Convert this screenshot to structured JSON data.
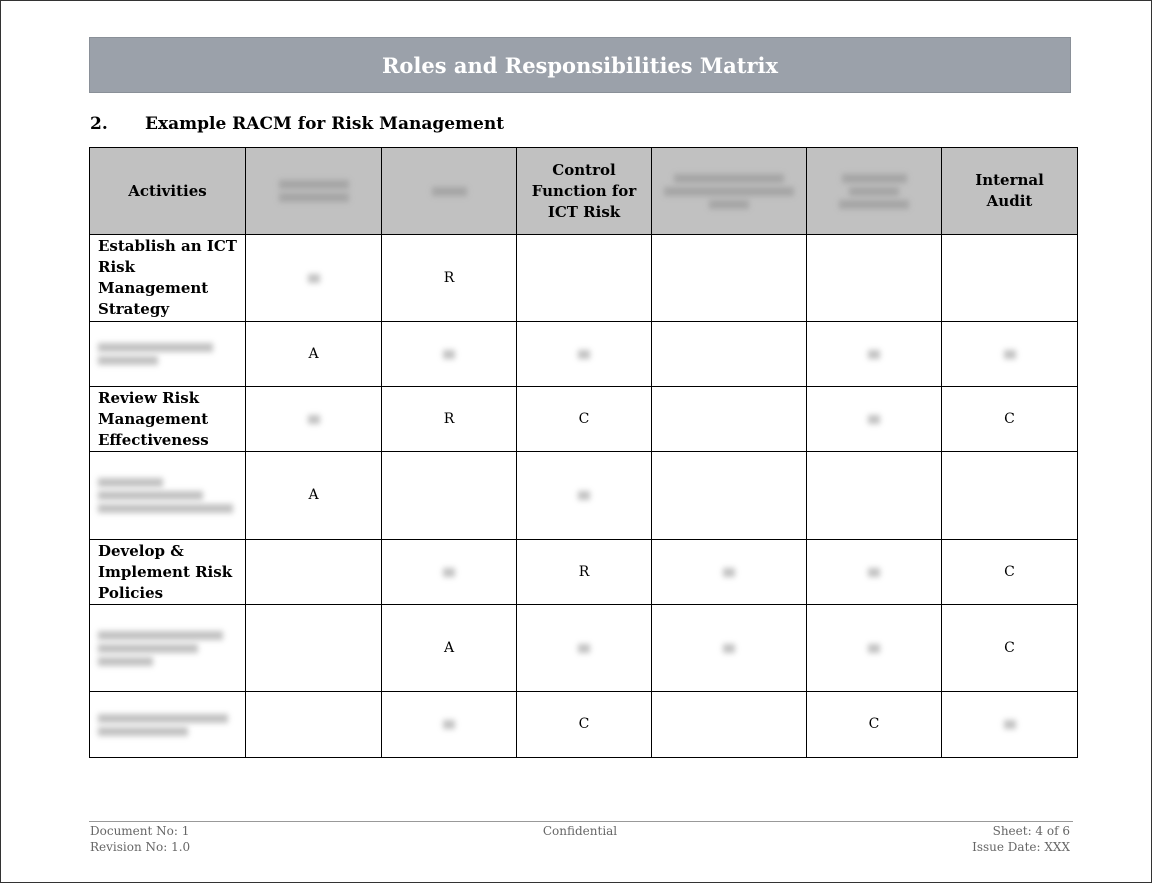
{
  "header": {
    "title": "Roles and Responsibilities Matrix"
  },
  "section": {
    "number": "2.",
    "heading": "Example RACM for Risk Management"
  },
  "table": {
    "header": [
      "Activities",
      null,
      null,
      "Control Function for ICT Risk",
      null,
      null,
      "Internal Audit"
    ],
    "rows": [
      [
        "Establish an ICT Risk Management Strategy",
        null,
        "R",
        null,
        null,
        null,
        null
      ],
      [
        null,
        "A",
        null,
        null,
        null,
        null,
        null
      ],
      [
        "Review Risk Management Effectiveness",
        null,
        "R",
        "C",
        null,
        null,
        "C"
      ],
      [
        null,
        "A",
        null,
        null,
        null,
        null,
        null
      ],
      [
        "Develop & Implement Risk Policies",
        null,
        null,
        "R",
        null,
        null,
        "C"
      ],
      [
        null,
        null,
        "A",
        null,
        null,
        null,
        "C"
      ],
      [
        null,
        null,
        null,
        "C",
        null,
        "C",
        null
      ]
    ]
  },
  "footer": {
    "document_no": "Document No: 1",
    "revision_no": "Revision No: 1.0",
    "classification": "Confidential",
    "sheet": "Sheet: 4 of 6",
    "issue_date": "Issue Date: XXX"
  }
}
